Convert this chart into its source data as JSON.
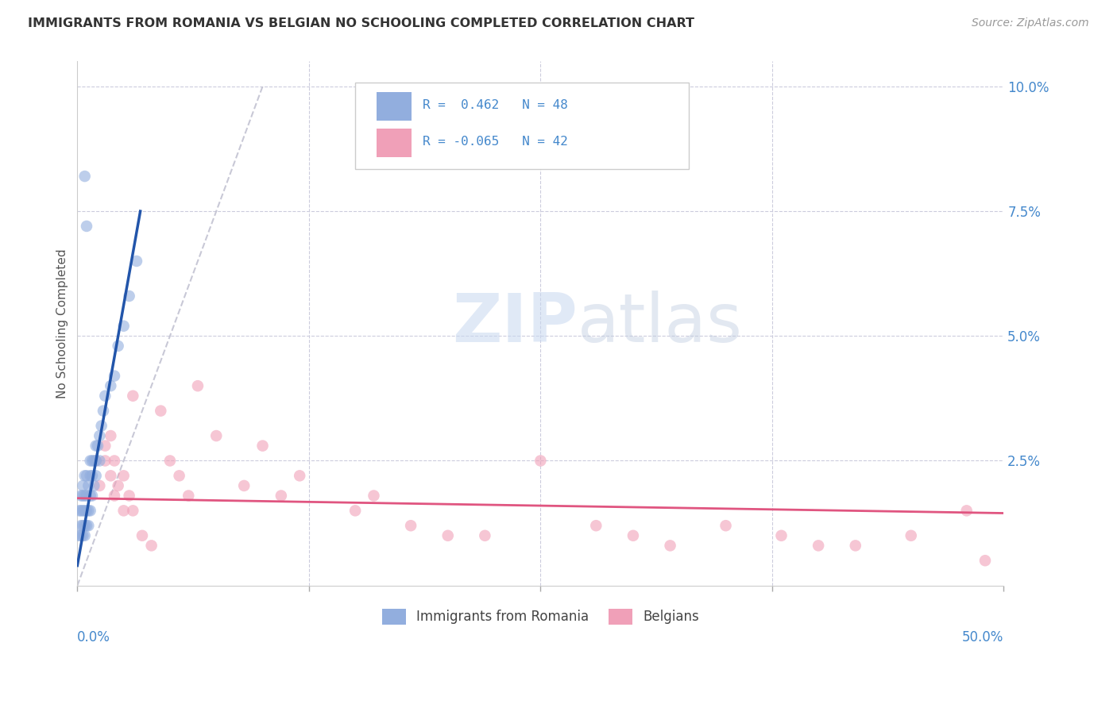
{
  "title": "IMMIGRANTS FROM ROMANIA VS BELGIAN NO SCHOOLING COMPLETED CORRELATION CHART",
  "source": "Source: ZipAtlas.com",
  "ylabel": "No Schooling Completed",
  "ytick_vals": [
    0.0,
    0.025,
    0.05,
    0.075,
    0.1
  ],
  "ytick_labels": [
    "",
    "2.5%",
    "5.0%",
    "7.5%",
    "10.0%"
  ],
  "xlim": [
    0.0,
    0.5
  ],
  "ylim": [
    0.0,
    0.105
  ],
  "color_romania": "#92aede",
  "color_belgian": "#f0a0b8",
  "color_trendline_romania": "#2255aa",
  "color_trendline_belgian": "#e05580",
  "color_dashed": "#bbbbcc",
  "background": "#ffffff",
  "watermark_zip": "ZIP",
  "watermark_atlas": "atlas",
  "grid_color": "#ccccdd",
  "tick_color": "#4488cc",
  "romania_trendline": [
    [
      0.0,
      0.004
    ],
    [
      0.034,
      0.075
    ]
  ],
  "belgian_trendline": [
    [
      0.0,
      0.0175
    ],
    [
      0.5,
      0.0145
    ]
  ],
  "dashed_line": [
    [
      0.0,
      0.0
    ],
    [
      0.1,
      0.1
    ]
  ]
}
